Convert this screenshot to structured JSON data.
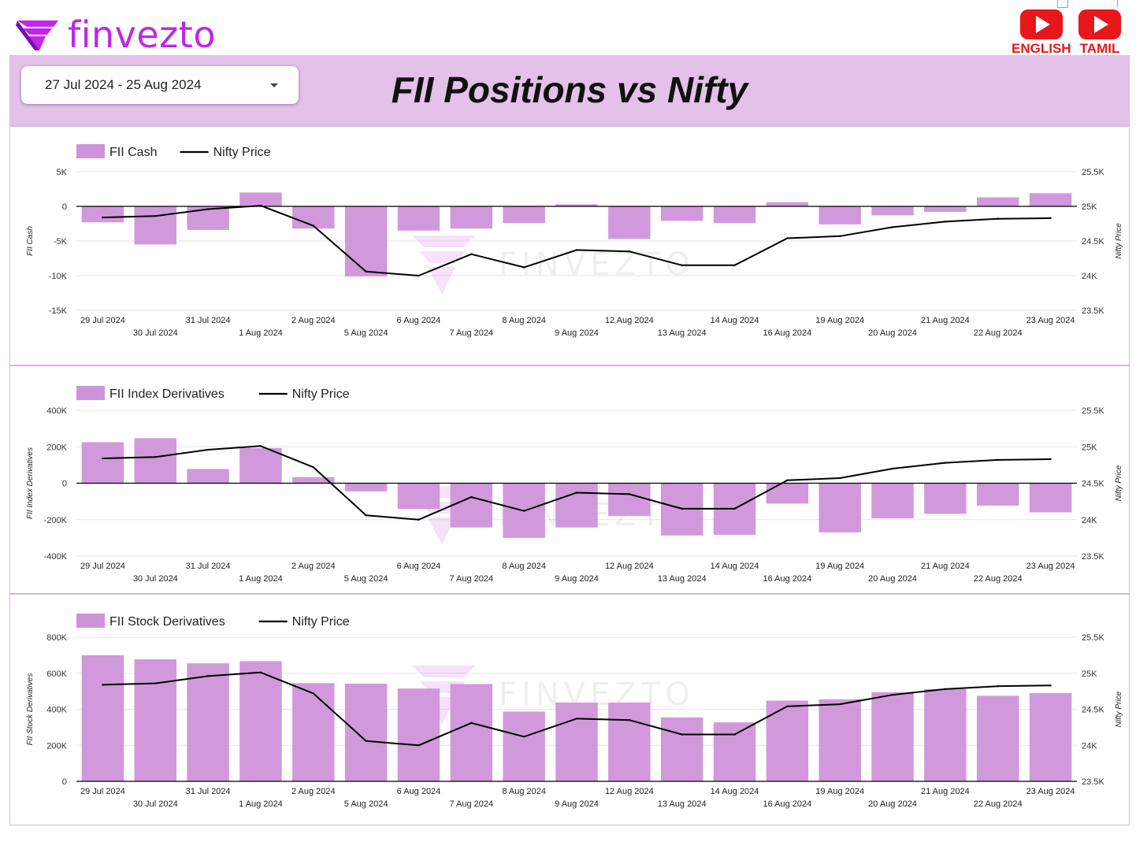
{
  "brand": {
    "name": "finvezto",
    "color": "#c026e8",
    "logo_icon": "finvezto-logo-icon"
  },
  "youtube": [
    {
      "label": "ENGLISH",
      "icon": "youtube-play-icon"
    },
    {
      "label": "TAMIL",
      "icon": "youtube-play-icon"
    }
  ],
  "header": {
    "date_range": "27 Jul 2024 - 25 Aug 2024",
    "title": "FII Positions vs Nifty",
    "background": "#e3c1e9"
  },
  "watermark": "FINVEZTO",
  "colors": {
    "bar": "#cf93da",
    "line": "#000000"
  },
  "chart_data": [
    {
      "type": "bar+line",
      "categories": [
        "29 Jul 2024",
        "30 Jul 2024",
        "31 Jul 2024",
        "1 Aug 2024",
        "2 Aug 2024",
        "5 Aug 2024",
        "6 Aug 2024",
        "7 Aug 2024",
        "8 Aug 2024",
        "9 Aug 2024",
        "12 Aug 2024",
        "13 Aug 2024",
        "14 Aug 2024",
        "16 Aug 2024",
        "19 Aug 2024",
        "20 Aug 2024",
        "21 Aug 2024",
        "22 Aug 2024",
        "23 Aug 2024"
      ],
      "series": [
        {
          "name": "FII Cash",
          "type": "bar",
          "axis": "left",
          "values": [
            -2300,
            -5500,
            -3400,
            2000,
            -3200,
            -10100,
            -3500,
            -3200,
            -2400,
            300,
            -4700,
            -2100,
            -2400,
            600,
            -2600,
            -1300,
            -800,
            1300,
            1900
          ]
        },
        {
          "name": "Nifty Price",
          "type": "line",
          "axis": "right",
          "values": [
            24840,
            24860,
            24960,
            25010,
            24720,
            24060,
            24000,
            24310,
            24120,
            24370,
            24350,
            24150,
            24150,
            24540,
            24570,
            24700,
            24780,
            24820,
            24830
          ]
        }
      ],
      "ylabel": "FII Cash",
      "y2label": "Nifty Price",
      "ylim": [
        -15000,
        5000
      ],
      "yticks": [
        -15000,
        -10000,
        -5000,
        0,
        5000
      ],
      "ytick_labels": [
        "-15K",
        "-10K",
        "-5K",
        "0",
        "5K"
      ],
      "y2lim": [
        23500,
        25500
      ],
      "y2ticks": [
        23500,
        24000,
        24500,
        25000,
        25500
      ],
      "y2tick_labels": [
        "23.5K",
        "24K",
        "24.5K",
        "25K",
        "25.5K"
      ],
      "legend": "top-left",
      "grid": true
    },
    {
      "type": "bar+line",
      "categories": [
        "29 Jul 2024",
        "30 Jul 2024",
        "31 Jul 2024",
        "1 Aug 2024",
        "2 Aug 2024",
        "5 Aug 2024",
        "6 Aug 2024",
        "7 Aug 2024",
        "8 Aug 2024",
        "9 Aug 2024",
        "12 Aug 2024",
        "13 Aug 2024",
        "14 Aug 2024",
        "16 Aug 2024",
        "19 Aug 2024",
        "20 Aug 2024",
        "21 Aug 2024",
        "22 Aug 2024",
        "23 Aug 2024"
      ],
      "series": [
        {
          "name": "FII Index Derivatives",
          "type": "bar",
          "axis": "left",
          "values": [
            225000,
            247000,
            78000,
            193000,
            33000,
            -45000,
            -142000,
            -243000,
            -300000,
            -243000,
            -180000,
            -287000,
            -283000,
            -112000,
            -270000,
            -193000,
            -168000,
            -123000,
            -160000
          ]
        },
        {
          "name": "Nifty Price",
          "type": "line",
          "axis": "right",
          "values": [
            24840,
            24860,
            24960,
            25010,
            24720,
            24060,
            24000,
            24310,
            24120,
            24370,
            24350,
            24150,
            24150,
            24540,
            24570,
            24700,
            24780,
            24820,
            24830
          ]
        }
      ],
      "ylabel": "FII Index Derivatives",
      "y2label": "Nifty Price",
      "ylim": [
        -400000,
        400000
      ],
      "yticks": [
        -400000,
        -200000,
        0,
        200000,
        400000
      ],
      "ytick_labels": [
        "-400K",
        "-200K",
        "0",
        "200K",
        "400K"
      ],
      "y2lim": [
        23500,
        25500
      ],
      "y2ticks": [
        23500,
        24000,
        24500,
        25000,
        25500
      ],
      "y2tick_labels": [
        "23.5K",
        "24K",
        "24.5K",
        "25K",
        "25.5K"
      ],
      "legend": "top-left",
      "grid": true
    },
    {
      "type": "bar+line",
      "categories": [
        "29 Jul 2024",
        "30 Jul 2024",
        "31 Jul 2024",
        "1 Aug 2024",
        "2 Aug 2024",
        "5 Aug 2024",
        "6 Aug 2024",
        "7 Aug 2024",
        "8 Aug 2024",
        "9 Aug 2024",
        "12 Aug 2024",
        "13 Aug 2024",
        "14 Aug 2024",
        "16 Aug 2024",
        "19 Aug 2024",
        "20 Aug 2024",
        "21 Aug 2024",
        "22 Aug 2024",
        "23 Aug 2024"
      ],
      "series": [
        {
          "name": "FII Stock Derivatives",
          "type": "bar",
          "axis": "left",
          "values": [
            700000,
            677000,
            655000,
            667000,
            545000,
            542000,
            515000,
            540000,
            387000,
            437000,
            437000,
            355000,
            327000,
            448000,
            455000,
            495000,
            512000,
            475000,
            490000
          ]
        },
        {
          "name": "Nifty Price",
          "type": "line",
          "axis": "right",
          "values": [
            24840,
            24860,
            24960,
            25010,
            24720,
            24060,
            24000,
            24310,
            24120,
            24370,
            24350,
            24150,
            24150,
            24540,
            24570,
            24700,
            24780,
            24820,
            24830
          ]
        }
      ],
      "ylabel": "FII Stock Derivatives",
      "y2label": "Nifty Price",
      "ylim": [
        0,
        800000
      ],
      "yticks": [
        0,
        200000,
        400000,
        600000,
        800000
      ],
      "ytick_labels": [
        "0",
        "200K",
        "400K",
        "600K",
        "800K"
      ],
      "y2lim": [
        23500,
        25500
      ],
      "y2ticks": [
        23500,
        24000,
        24500,
        25000,
        25500
      ],
      "y2tick_labels": [
        "23.5K",
        "24K",
        "24.5K",
        "25K",
        "25.5K"
      ],
      "legend": "top-left",
      "grid": true
    }
  ]
}
